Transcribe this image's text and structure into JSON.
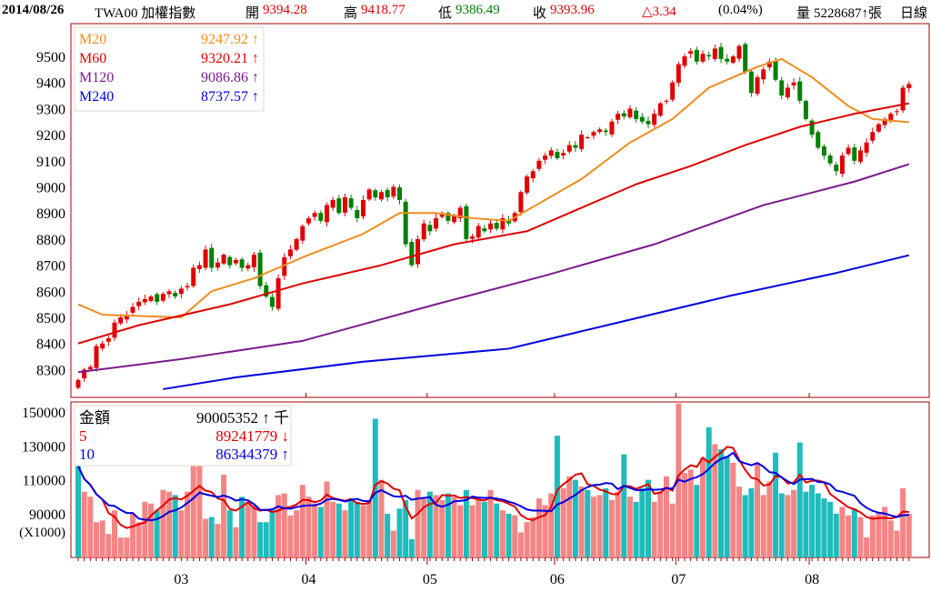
{
  "header": {
    "date": "2014/08/26",
    "symbol": "TWA00 加權指數",
    "open_label": "開",
    "open": "9394.28",
    "high_label": "高",
    "high": "9418.77",
    "low_label": "低",
    "low": "9386.49",
    "close_label": "收",
    "close": "9393.96",
    "change": "△3.34",
    "change_pct": "(0.04%)",
    "volume_label": "量",
    "volume": "5228687↑張",
    "period": "日線"
  },
  "colors": {
    "up": "#e00000",
    "down": "#008000",
    "m20": "#f08c1e",
    "m60": "#e00000",
    "m120": "#7a1a8c",
    "m240": "#0000e0",
    "vol_up": "#f48585",
    "vol_down": "#1fbcbc",
    "vol5": "#e00000",
    "vol10": "#0000e0",
    "frame": "#a00000"
  },
  "legend": [
    {
      "name": "M20",
      "value": "9247.92 ↑",
      "color": "#f08c1e"
    },
    {
      "name": "M60",
      "value": "9320.21 ↑",
      "color": "#e00000"
    },
    {
      "name": "M120",
      "value": "9086.86 ↑",
      "color": "#7a1a8c"
    },
    {
      "name": "M240",
      "value": "8737.57 ↑",
      "color": "#0000e0"
    }
  ],
  "vol_legend": [
    {
      "name": "金額",
      "value": "90005352 ↑ 千",
      "color": "#000000"
    },
    {
      "name": "5",
      "value": "89241779 ↓",
      "color": "#e00000"
    },
    {
      "name": "10",
      "value": "86344379 ↑",
      "color": "#0000e0"
    }
  ],
  "chart_data": {
    "type": "candlestick",
    "price_ticks": [
      "9500",
      "9400",
      "9300",
      "9200",
      "9100",
      "9000",
      "8900",
      "8800",
      "8700",
      "8600",
      "8500",
      "8400",
      "8300"
    ],
    "price_range": [
      8220,
      9625
    ],
    "volume_ticks": [
      "150000",
      "130000",
      "110000",
      "90000"
    ],
    "volume_unit": "(X1000)",
    "volume_range": [
      65000,
      155000
    ],
    "months": [
      {
        "label": "03",
        "day": 17
      },
      {
        "label": "04",
        "day": 38
      },
      {
        "label": "05",
        "day": 58
      },
      {
        "label": "06",
        "day": 79
      },
      {
        "label": "07",
        "day": 99
      },
      {
        "label": "08",
        "day": 121
      }
    ],
    "month_boundaries": [
      38,
      58,
      79,
      99,
      121
    ],
    "closes": [
      8260,
      8300,
      8310,
      8390,
      8400,
      8420,
      8480,
      8500,
      8510,
      8540,
      8560,
      8570,
      8580,
      8560,
      8590,
      8600,
      8580,
      8610,
      8620,
      8690,
      8700,
      8760,
      8690,
      8710,
      8740,
      8700,
      8720,
      8690,
      8700,
      8740,
      8620,
      8580,
      8540,
      8650,
      8730,
      8760,
      8800,
      8850,
      8880,
      8900,
      8870,
      8930,
      8950,
      8900,
      8960,
      8920,
      8880,
      8950,
      8990,
      8960,
      8980,
      8960,
      9000,
      8950,
      8780,
      8700,
      8800,
      8860,
      8830,
      8880,
      8900,
      8870,
      8890,
      8920,
      8800,
      8810,
      8850,
      8830,
      8860,
      8840,
      8880,
      8860,
      8900,
      8980,
      9040,
      9060,
      9100,
      9120,
      9140,
      9110,
      9130,
      9160,
      9150,
      9200,
      9190,
      9210,
      9220,
      9210,
      9250,
      9280,
      9270,
      9300,
      9260,
      9250,
      9240,
      9280,
      9320,
      9330,
      9400,
      9470,
      9500,
      9520,
      9480,
      9510,
      9500,
      9530,
      9490,
      9480,
      9500,
      9540,
      9440,
      9360,
      9420,
      9450,
      9480,
      9410,
      9350,
      9380,
      9400,
      9330,
      9260,
      9200,
      9150,
      9120,
      9090,
      9060,
      9120,
      9150,
      9100,
      9140,
      9170,
      9210,
      9240,
      9260,
      9280,
      9290,
      9380,
      9394
    ],
    "volumes": [
      118000,
      103000,
      100000,
      85000,
      86000,
      78000,
      92000,
      76000,
      76000,
      90000,
      85000,
      97000,
      96000,
      92000,
      104000,
      103000,
      101000,
      92000,
      103000,
      118000,
      118000,
      87000,
      88000,
      84000,
      113000,
      92000,
      82000,
      100000,
      97000,
      95000,
      85000,
      85000,
      93000,
      101000,
      102000,
      89000,
      92000,
      107000,
      100000,
      96000,
      94000,
      109000,
      97000,
      96000,
      92000,
      99000,
      97000,
      95000,
      98000,
      146000,
      110000,
      90000,
      80000,
      93000,
      98000,
      75000,
      104000,
      99000,
      103000,
      101000,
      98000,
      102000,
      100000,
      95000,
      104000,
      95000,
      98000,
      97000,
      104000,
      96000,
      92000,
      90000,
      89000,
      79000,
      85000,
      88000,
      99000,
      95000,
      102000,
      136000,
      105000,
      112000,
      110000,
      106000,
      104000,
      100000,
      101000,
      105000,
      98000,
      103000,
      125000,
      100000,
      97000,
      105000,
      110000,
      97000,
      103000,
      112000,
      96000,
      155000,
      114000,
      116000,
      107000,
      123000,
      141000,
      131000,
      128000,
      124000,
      120000,
      106000,
      101000,
      105000,
      120000,
      101000,
      109000,
      126000,
      102000,
      101000,
      104000,
      132000,
      103000,
      107000,
      102000,
      99000,
      97000,
      90000,
      94000,
      89000,
      93000,
      88000,
      76000,
      89000,
      91000,
      94000,
      86000,
      80000,
      105000,
      90000
    ],
    "ma_series": [
      {
        "name": "M20",
        "points": [
          [
            0,
            8550
          ],
          [
            4,
            8510
          ],
          [
            17,
            8500
          ],
          [
            22,
            8600
          ],
          [
            29,
            8650
          ],
          [
            37,
            8730
          ],
          [
            47,
            8820
          ],
          [
            53,
            8900
          ],
          [
            59,
            8900
          ],
          [
            65,
            8880
          ],
          [
            71,
            8870
          ],
          [
            77,
            8950
          ],
          [
            83,
            9030
          ],
          [
            91,
            9170
          ],
          [
            98,
            9260
          ],
          [
            104,
            9380
          ],
          [
            112,
            9460
          ],
          [
            116,
            9490
          ],
          [
            121,
            9420
          ],
          [
            127,
            9310
          ],
          [
            131,
            9260
          ],
          [
            137,
            9248
          ]
        ]
      },
      {
        "name": "M60",
        "points": [
          [
            0,
            8400
          ],
          [
            10,
            8470
          ],
          [
            25,
            8550
          ],
          [
            37,
            8630
          ],
          [
            50,
            8700
          ],
          [
            62,
            8780
          ],
          [
            74,
            8830
          ],
          [
            83,
            8920
          ],
          [
            92,
            9010
          ],
          [
            101,
            9080
          ],
          [
            110,
            9160
          ],
          [
            119,
            9230
          ],
          [
            128,
            9280
          ],
          [
            137,
            9320
          ]
        ]
      },
      {
        "name": "M120",
        "points": [
          [
            0,
            8290
          ],
          [
            17,
            8340
          ],
          [
            37,
            8410
          ],
          [
            59,
            8550
          ],
          [
            77,
            8660
          ],
          [
            95,
            8780
          ],
          [
            113,
            8930
          ],
          [
            128,
            9020
          ],
          [
            137,
            9087
          ]
        ]
      },
      {
        "name": "M240",
        "points": [
          [
            14,
            8225
          ],
          [
            26,
            8270
          ],
          [
            47,
            8330
          ],
          [
            71,
            8380
          ],
          [
            89,
            8480
          ],
          [
            107,
            8580
          ],
          [
            125,
            8670
          ],
          [
            137,
            8738
          ]
        ]
      }
    ]
  }
}
